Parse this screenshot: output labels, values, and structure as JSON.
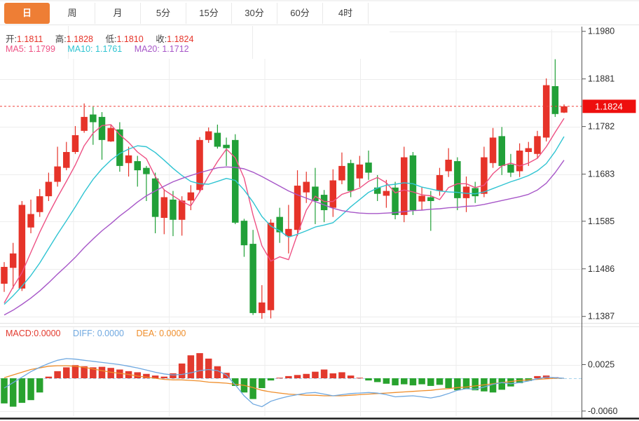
{
  "tabbar": {
    "tabs": [
      {
        "label": "日",
        "active": true
      },
      {
        "label": "周",
        "active": false
      },
      {
        "label": "月",
        "active": false
      },
      {
        "label": "5分",
        "active": false
      },
      {
        "label": "15分",
        "active": false
      },
      {
        "label": "30分",
        "active": false
      },
      {
        "label": "60分",
        "active": false
      },
      {
        "label": "4时",
        "active": false
      }
    ]
  },
  "readouts": {
    "ohlc": {
      "open_label": "开:",
      "open": "1.1811",
      "high_label": "高:",
      "high": "1.1828",
      "low_label": "低:",
      "low": "1.1810",
      "close_label": "收:",
      "close": "1.1824"
    },
    "ma": {
      "ma5_label": "MA5:",
      "ma5": "1.1799",
      "ma10_label": "MA10:",
      "ma10": "1.1761",
      "ma20_label": "MA20:",
      "ma20": "1.1712"
    },
    "macd": {
      "macd_label": "MACD:",
      "macd": "0.0000",
      "diff_label": "DIFF:",
      "diff": "0.0000",
      "dea_label": "DEA:",
      "dea": "0.0000"
    }
  },
  "colors": {
    "up": "#e63329",
    "down": "#21a038",
    "ma5": "#ee5184",
    "ma10": "#2fc4d2",
    "ma20": "#a757c8",
    "hist_up": "#e23a2e",
    "hist_down": "#28a22e",
    "diff_line": "#6fa8e0",
    "dea_line": "#ef8e2b",
    "tab_active": "#ee7e35",
    "price_flag": "#ee0f0e",
    "current_price_line": "#f0433e",
    "macd_zero_line": "#a6d2ec",
    "grid": "#ededed",
    "axis": "#555555",
    "tick_text": "#2e2e2e"
  },
  "chart_data": [
    {
      "type": "candlestick",
      "title": "",
      "xlabel": "",
      "ylabel": "",
      "grid": true,
      "y_axis": {
        "tick_labels": [
          "1.1980",
          "1.1881",
          "1.1782",
          "1.1683",
          "1.1585",
          "1.1486",
          "1.1387"
        ],
        "min": 1.1372,
        "max": 1.1984
      },
      "current_price": "1.1824",
      "candles_ohlc": [
        [
          1.1455,
          1.15,
          1.1438,
          1.149
        ],
        [
          1.1488,
          1.154,
          1.1445,
          1.1518
        ],
        [
          1.1445,
          1.1627,
          1.144,
          1.1619
        ],
        [
          1.1572,
          1.163,
          1.156,
          1.16
        ],
        [
          1.1604,
          1.1652,
          1.1594,
          1.1637
        ],
        [
          1.1637,
          1.1686,
          1.1627,
          1.1667
        ],
        [
          1.1667,
          1.174,
          1.1657,
          1.1699
        ],
        [
          1.1696,
          1.175,
          1.1691,
          1.1729
        ],
        [
          1.1729,
          1.1783,
          1.1725,
          1.1764
        ],
        [
          1.1773,
          1.183,
          1.1769,
          1.1802
        ],
        [
          1.1807,
          1.1823,
          1.1744,
          1.1791
        ],
        [
          1.1802,
          1.1812,
          1.1713,
          1.1754
        ],
        [
          1.1751,
          1.1786,
          1.175,
          1.1779
        ],
        [
          1.1776,
          1.1791,
          1.1688,
          1.17
        ],
        [
          1.1706,
          1.174,
          1.1678,
          1.1722
        ],
        [
          1.171,
          1.1721,
          1.1657,
          1.1691
        ],
        [
          1.1696,
          1.17,
          1.1627,
          1.1683
        ],
        [
          1.1674,
          1.1686,
          1.156,
          1.1594
        ],
        [
          1.1592,
          1.1652,
          1.1558,
          1.1635
        ],
        [
          1.163,
          1.1648,
          1.1554,
          1.1588
        ],
        [
          1.1588,
          1.1637,
          1.1555,
          1.1628
        ],
        [
          1.1628,
          1.166,
          1.1608,
          1.1645
        ],
        [
          1.165,
          1.176,
          1.1645,
          1.1754
        ],
        [
          1.1754,
          1.178,
          1.1748,
          1.1772
        ],
        [
          1.1769,
          1.1786,
          1.1736,
          1.174
        ],
        [
          1.1744,
          1.1759,
          1.17,
          1.1737
        ],
        [
          1.1754,
          1.1766,
          1.1579,
          1.1582
        ],
        [
          1.1586,
          1.159,
          1.1511,
          1.1535
        ],
        [
          1.1538,
          1.1567,
          1.139,
          1.1394
        ],
        [
          1.1394,
          1.1452,
          1.1382,
          1.1416
        ],
        [
          1.14,
          1.1589,
          1.1383,
          1.1582
        ],
        [
          1.1594,
          1.1613,
          1.154,
          1.1562
        ],
        [
          1.1554,
          1.1619,
          1.1518,
          1.1569
        ],
        [
          1.1567,
          1.1691,
          1.1554,
          1.1659
        ],
        [
          1.1645,
          1.1688,
          1.1623,
          1.1667
        ],
        [
          1.1657,
          1.1696,
          1.1579,
          1.1627
        ],
        [
          1.164,
          1.165,
          1.1583,
          1.1608
        ],
        [
          1.1613,
          1.1693,
          1.1594,
          1.167
        ],
        [
          1.167,
          1.1728,
          1.1662,
          1.17
        ],
        [
          1.1706,
          1.1713,
          1.1635,
          1.1648
        ],
        [
          1.1674,
          1.1721,
          1.1656,
          1.1703
        ],
        [
          1.1707,
          1.1732,
          1.1671,
          1.1686
        ],
        [
          1.1655,
          1.1681,
          1.1627,
          1.1642
        ],
        [
          1.1638,
          1.1671,
          1.1613,
          1.1648
        ],
        [
          1.1655,
          1.1667,
          1.1589,
          1.1598
        ],
        [
          1.1598,
          1.174,
          1.1583,
          1.1718
        ],
        [
          1.1722,
          1.1729,
          1.1598,
          1.1608
        ],
        [
          1.1626,
          1.1656,
          1.1608,
          1.1638
        ],
        [
          1.1635,
          1.1648,
          1.1565,
          1.1627
        ],
        [
          1.1648,
          1.1696,
          1.1638,
          1.1681
        ],
        [
          1.1689,
          1.1737,
          1.1677,
          1.1713
        ],
        [
          1.171,
          1.1718,
          1.1608,
          1.1633
        ],
        [
          1.1633,
          1.1678,
          1.1604,
          1.1657
        ],
        [
          1.1654,
          1.1667,
          1.1623,
          1.1637
        ],
        [
          1.1642,
          1.174,
          1.1635,
          1.1718
        ],
        [
          1.1706,
          1.1779,
          1.1696,
          1.1759
        ],
        [
          1.1762,
          1.1781,
          1.1681,
          1.17
        ],
        [
          1.1703,
          1.1725,
          1.1677,
          1.1686
        ],
        [
          1.1689,
          1.1747,
          1.1677,
          1.1732
        ],
        [
          1.1729,
          1.175,
          1.17,
          1.1737
        ],
        [
          1.1725,
          1.1773,
          1.1715,
          1.1762
        ],
        [
          1.1759,
          1.1882,
          1.1751,
          1.1868
        ],
        [
          1.1866,
          1.1922,
          1.1802,
          1.1808
        ],
        [
          1.1811,
          1.1828,
          1.181,
          1.1824
        ]
      ],
      "series": [
        {
          "name": "MA5",
          "value": 1.1799,
          "points": [
            1.1415,
            1.1448,
            1.1478,
            1.152,
            1.1562,
            1.16,
            1.1635,
            1.1668,
            1.1702,
            1.1742,
            1.1768,
            1.1784,
            1.1786,
            1.1765,
            1.1749,
            1.1729,
            1.1715,
            1.1678,
            1.165,
            1.1638,
            1.1626,
            1.1617,
            1.1646,
            1.1679,
            1.1709,
            1.1735,
            1.1717,
            1.1675,
            1.1598,
            1.1534,
            1.1502,
            1.1511,
            1.1505,
            1.1558,
            1.1608,
            1.1637,
            1.1626,
            1.1626,
            1.1641,
            1.1647,
            1.1654,
            1.1668,
            1.1676,
            1.1665,
            1.1644,
            1.165,
            1.1646,
            1.164,
            1.1638,
            1.163,
            1.1655,
            1.1663,
            1.1663,
            1.1655,
            1.166,
            1.1684,
            1.17,
            1.1706,
            1.17,
            1.1706,
            1.1716,
            1.174,
            1.177,
            1.1799
          ]
        },
        {
          "name": "MA10",
          "value": 1.1761,
          "points": [
            1.1412,
            1.143,
            1.145,
            1.1472,
            1.1498,
            1.1528,
            1.1558,
            1.1586,
            1.1615,
            1.1645,
            1.1672,
            1.1694,
            1.1712,
            1.1726,
            1.1735,
            1.1742,
            1.174,
            1.1728,
            1.1712,
            1.1695,
            1.168,
            1.1668,
            1.1663,
            1.1662,
            1.1668,
            1.1674,
            1.167,
            1.165,
            1.1625,
            1.1595,
            1.1575,
            1.1565,
            1.1552,
            1.1558,
            1.1565,
            1.1573,
            1.1577,
            1.1582,
            1.1598,
            1.1615,
            1.163,
            1.1645,
            1.1654,
            1.166,
            1.1662,
            1.1665,
            1.1663,
            1.1656,
            1.1652,
            1.1648,
            1.1646,
            1.1645,
            1.1643,
            1.1642,
            1.1646,
            1.1653,
            1.166,
            1.1667,
            1.1673,
            1.168,
            1.169,
            1.1705,
            1.173,
            1.1761
          ]
        },
        {
          "name": "MA20",
          "value": 1.1712,
          "points": [
            1.139,
            1.14,
            1.1412,
            1.1425,
            1.144,
            1.1457,
            1.1475,
            1.1492,
            1.151,
            1.153,
            1.1548,
            1.1565,
            1.158,
            1.1596,
            1.161,
            1.1625,
            1.1638,
            1.1648,
            1.1658,
            1.1667,
            1.1674,
            1.168,
            1.1686,
            1.1691,
            1.1696,
            1.1698,
            1.1697,
            1.1694,
            1.1687,
            1.1678,
            1.1668,
            1.1658,
            1.1648,
            1.164,
            1.1633,
            1.1626,
            1.1619,
            1.1612,
            1.1607,
            1.1604,
            1.1602,
            1.1601,
            1.1601,
            1.1602,
            1.1603,
            1.1605,
            1.1607,
            1.1608,
            1.161,
            1.1611,
            1.1613,
            1.1614,
            1.1616,
            1.1617,
            1.162,
            1.1624,
            1.1628,
            1.1632,
            1.1636,
            1.1641,
            1.165,
            1.1664,
            1.1686,
            1.1712
          ]
        }
      ]
    },
    {
      "type": "bar",
      "title": "MACD",
      "y_axis": {
        "tick_labels": [
          "0.0025",
          "-0.0060"
        ],
        "zero": 0
      },
      "histogram": [
        -0.0046,
        -0.0052,
        -0.0045,
        -0.004,
        -0.0026,
        0.0003,
        0.0013,
        0.002,
        0.0024,
        0.0022,
        0.002,
        0.0021,
        0.0019,
        0.0016,
        0.0013,
        0.0011,
        0.0008,
        0.0005,
        0.0003,
        0.0009,
        0.0027,
        0.0042,
        0.0046,
        0.0036,
        0.0022,
        0.001,
        -0.0014,
        -0.0026,
        -0.0038,
        -0.0018,
        -0.0004,
        0.0001,
        0.0004,
        0.0006,
        0.0008,
        0.0012,
        0.0016,
        0.0009,
        0.0011,
        0.0005,
        0.0001,
        -0.0004,
        -0.0007,
        -0.001,
        -0.0013,
        -0.0011,
        -0.0013,
        -0.0011,
        -0.0014,
        -0.0012,
        -0.0018,
        -0.0022,
        -0.002,
        -0.0022,
        -0.0024,
        -0.0026,
        -0.0021,
        -0.0015,
        -0.0009,
        -0.0005,
        0.0004,
        0.0005,
        0.0002,
        0.0
      ],
      "diff_line": [
        -0.0018,
        -0.0008,
        0.0002,
        0.0012,
        0.002,
        0.0027,
        0.0033,
        0.0036,
        0.0035,
        0.0033,
        0.0031,
        0.0029,
        0.0027,
        0.0025,
        0.0022,
        0.0019,
        0.0015,
        0.0011,
        0.0008,
        0.0006,
        0.0007,
        0.001,
        0.0014,
        0.0016,
        0.0014,
        0.0006,
        -0.0012,
        -0.0032,
        -0.0047,
        -0.0052,
        -0.0042,
        -0.0037,
        -0.0033,
        -0.003,
        -0.0027,
        -0.0026,
        -0.0029,
        -0.0032,
        -0.003,
        -0.0028,
        -0.0027,
        -0.0026,
        -0.0027,
        -0.003,
        -0.0034,
        -0.0033,
        -0.0032,
        -0.0034,
        -0.0036,
        -0.0033,
        -0.0028,
        -0.0022,
        -0.0019,
        -0.002,
        -0.0016,
        -0.0011,
        -0.0008,
        -0.001,
        -0.0008,
        -0.0005,
        -0.0001,
        0.0002,
        0.0001,
        0.0
      ],
      "dea_line": [
        0.0001,
        0.0006,
        0.0011,
        0.0016,
        0.0019,
        0.0022,
        0.0023,
        0.0023,
        0.0022,
        0.002,
        0.0017,
        0.0014,
        0.0011,
        0.0009,
        0.0007,
        0.0004,
        0.0002,
        0.0,
        -0.0002,
        -0.0003,
        -0.0003,
        -0.0004,
        -0.0005,
        -0.0007,
        -0.0008,
        -0.0009,
        -0.0011,
        -0.0013,
        -0.0017,
        -0.0022,
        -0.0025,
        -0.0027,
        -0.0029,
        -0.003,
        -0.0031,
        -0.0031,
        -0.0032,
        -0.0032,
        -0.0032,
        -0.0031,
        -0.003,
        -0.0029,
        -0.0028,
        -0.0027,
        -0.0026,
        -0.0025,
        -0.0024,
        -0.0023,
        -0.0022,
        -0.002,
        -0.0019,
        -0.0017,
        -0.0016,
        -0.0014,
        -0.0012,
        -0.001,
        -0.0008,
        -0.0006,
        -0.0004,
        -0.0003,
        -0.0002,
        -0.0001,
        0.0,
        0.0
      ]
    }
  ]
}
